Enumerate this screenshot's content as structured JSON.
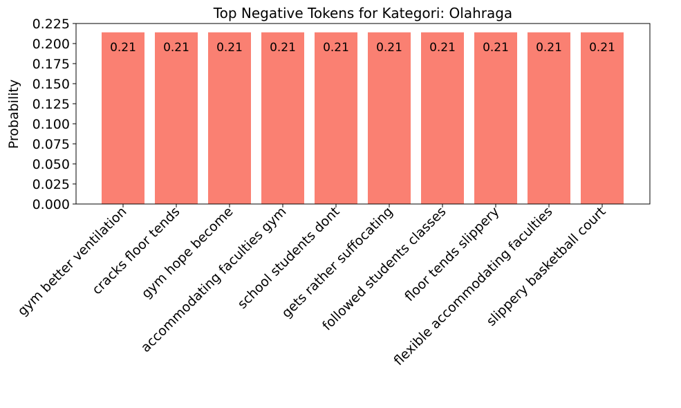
{
  "chart_data": {
    "type": "bar",
    "title": "Top Negative Tokens for Kategori: Olahraga",
    "xlabel": "",
    "ylabel": "Probability",
    "ylim": [
      0,
      0.225
    ],
    "yticks": [
      "0.000",
      "0.025",
      "0.050",
      "0.075",
      "0.100",
      "0.125",
      "0.150",
      "0.175",
      "0.200",
      "0.225"
    ],
    "categories": [
      "gym better ventilation",
      "cracks floor tends",
      "gym hope become",
      "accommodating faculties gym",
      "school students dont",
      "gets rather suffocating",
      "followed students classes",
      "floor tends slippery",
      "flexible accommodating faculties",
      "slippery basketball court"
    ],
    "values": [
      0.214,
      0.214,
      0.214,
      0.214,
      0.214,
      0.214,
      0.214,
      0.214,
      0.214,
      0.214
    ],
    "data_labels": [
      "0.21",
      "0.21",
      "0.21",
      "0.21",
      "0.21",
      "0.21",
      "0.21",
      "0.21",
      "0.21",
      "0.21"
    ],
    "bar_color": "#fa8072",
    "grid": false
  }
}
